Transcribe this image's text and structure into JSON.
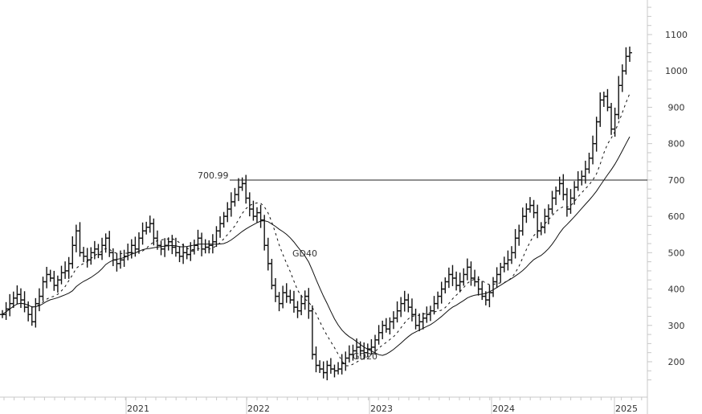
{
  "chart_data": {
    "type": "ohlc",
    "title": "",
    "xlabel": "",
    "ylabel": "",
    "ylim": [
      110,
      1195
    ],
    "grid": false,
    "y_axis": {
      "position": "right",
      "ticks": [
        200,
        300,
        400,
        500,
        600,
        700,
        800,
        900,
        1000,
        1100
      ]
    },
    "x_axis": {
      "ticks": [
        "2021",
        "2022",
        "2023",
        "2024",
        "2025"
      ]
    },
    "annotations": [
      {
        "type": "hline",
        "value": 700.99,
        "label": "700.99",
        "from": "2021-11"
      },
      {
        "type": "label",
        "text": "GD40",
        "series": "GD40"
      },
      {
        "type": "label",
        "text": "GD20",
        "series": "GD20"
      }
    ],
    "series": [
      {
        "name": "Price",
        "style": "ohlc-bars",
        "frequency": "weekly",
        "approx_closes": [
          330,
          345,
          360,
          375,
          385,
          370,
          350,
          330,
          310,
          360,
          380,
          420,
          440,
          430,
          410,
          425,
          445,
          450,
          470,
          520,
          560,
          500,
          490,
          480,
          500,
          510,
          495,
          520,
          540,
          500,
          480,
          470,
          480,
          490,
          500,
          520,
          510,
          540,
          560,
          570,
          580,
          540,
          520,
          510,
          520,
          530,
          515,
          500,
          490,
          500,
          495,
          505,
          520,
          540,
          510,
          515,
          520,
          530,
          560,
          580,
          600,
          620,
          640,
          660,
          680,
          690,
          650,
          620,
          600,
          610,
          590,
          520,
          470,
          410,
          380,
          360,
          390,
          380,
          370,
          350,
          340,
          360,
          380,
          340,
          220,
          190,
          180,
          170,
          190,
          180,
          175,
          180,
          195,
          210,
          220,
          230,
          240,
          230,
          225,
          235,
          240,
          260,
          280,
          300,
          290,
          310,
          320,
          340,
          360,
          370,
          350,
          330,
          300,
          310,
          320,
          330,
          340,
          360,
          380,
          400,
          420,
          440,
          430,
          410,
          420,
          440,
          460,
          430,
          420,
          400,
          380,
          370,
          390,
          420,
          440,
          460,
          470,
          480,
          500,
          540,
          560,
          600,
          620,
          630,
          610,
          560,
          570,
          600,
          620,
          650,
          670,
          690,
          660,
          620,
          650,
          680,
          700,
          710,
          730,
          760,
          800,
          860,
          920,
          930,
          900,
          840,
          880,
          960,
          1000,
          1040,
          1050
        ]
      },
      {
        "name": "GD20",
        "style": "dashed",
        "values_note": "20-period moving average"
      },
      {
        "name": "GD40",
        "style": "solid",
        "values_note": "40-period moving average"
      }
    ]
  },
  "labels": {
    "resistance": "700.99",
    "ma_long": "GD40",
    "ma_short": "GD20",
    "years": [
      "2021",
      "2022",
      "2023",
      "2024",
      "2025"
    ],
    "yticks": [
      "1100",
      "1000",
      "900",
      "800",
      "700",
      "600",
      "500",
      "400",
      "300",
      "200"
    ]
  }
}
